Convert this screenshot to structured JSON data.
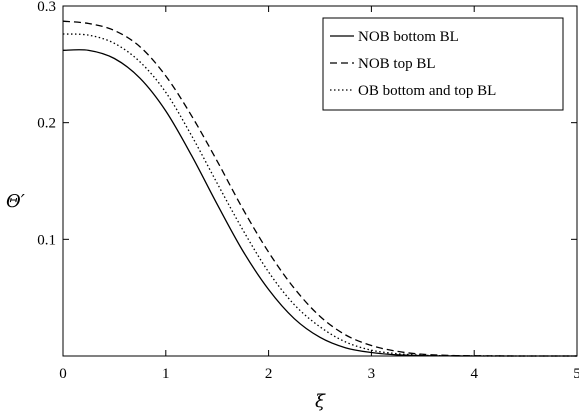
{
  "chart_data": {
    "type": "line",
    "xlabel": "ξ",
    "ylabel": "Θ′",
    "xlim": [
      0,
      5
    ],
    "ylim": [
      0,
      0.3
    ],
    "xticks": [
      0,
      1,
      2,
      3,
      4,
      5
    ],
    "xtick_labels": [
      "0",
      "1",
      "2",
      "3",
      "4",
      "5"
    ],
    "yticks": [
      0.1,
      0.2,
      0.3
    ],
    "ytick_labels": [
      "0.1",
      "0.2",
      "0.3"
    ],
    "grid": false,
    "legend_position": "top-right",
    "x": [
      0,
      0.25,
      0.5,
      0.75,
      1.0,
      1.25,
      1.5,
      1.75,
      2.0,
      2.25,
      2.5,
      2.75,
      3.0,
      3.25,
      3.5,
      3.75,
      4.0,
      4.5,
      5.0
    ],
    "series": [
      {
        "name": "NOB bottom BL",
        "style": "solid",
        "values": [
          0.262,
          0.262,
          0.255,
          0.238,
          0.21,
          0.172,
          0.13,
          0.09,
          0.057,
          0.032,
          0.016,
          0.007,
          0.003,
          0.001,
          0.0003,
          0.0001,
          0,
          0,
          0
        ]
      },
      {
        "name": "NOB top BL",
        "style": "dashed",
        "values": [
          0.287,
          0.285,
          0.279,
          0.265,
          0.24,
          0.206,
          0.167,
          0.126,
          0.089,
          0.058,
          0.034,
          0.018,
          0.009,
          0.004,
          0.0015,
          0.0005,
          0.0002,
          0,
          0
        ]
      },
      {
        "name": "OB bottom and top BL",
        "style": "dotted",
        "values": [
          0.276,
          0.275,
          0.268,
          0.252,
          0.226,
          0.189,
          0.148,
          0.108,
          0.072,
          0.044,
          0.025,
          0.012,
          0.005,
          0.002,
          0.0007,
          0.0002,
          0.0001,
          0,
          0
        ]
      }
    ]
  }
}
